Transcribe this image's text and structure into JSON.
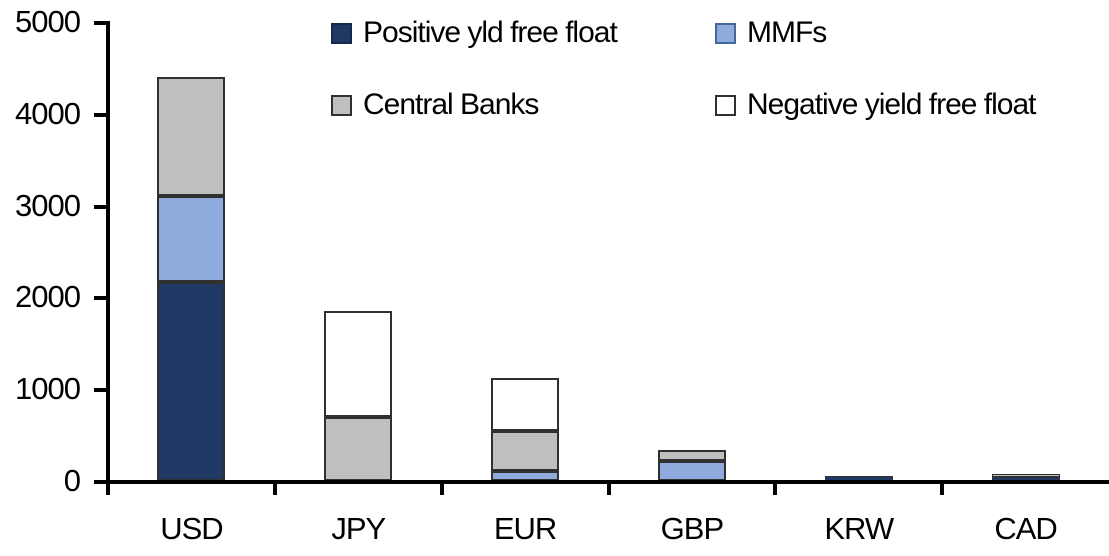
{
  "chart_data": {
    "type": "bar",
    "variant": "stacked-vertical",
    "title": "",
    "xlabel": "",
    "ylabel": "",
    "categories": [
      "USD",
      "JPY",
      "EUR",
      "GBP",
      "KRW",
      "CAD"
    ],
    "series": [
      {
        "name": "Positive yld free float",
        "color": "#1F3864",
        "border": "#17294A",
        "values": [
          2170,
          0,
          0,
          0,
          50,
          45
        ]
      },
      {
        "name": "MMFs",
        "color": "#8FAADC",
        "border": "#44679A",
        "values": [
          940,
          0,
          110,
          220,
          0,
          0
        ]
      },
      {
        "name": "Central Banks",
        "color": "#BFBFBF",
        "border": "#303030",
        "values": [
          1290,
          700,
          430,
          120,
          0,
          30
        ]
      },
      {
        "name": "Negative yield free float",
        "color": "#FFFFFF",
        "border": "#303030",
        "values": [
          0,
          1150,
          580,
          0,
          0,
          0
        ]
      }
    ],
    "totals": [
      4400,
      1850,
      1120,
      340,
      50,
      75
    ],
    "ylim": [
      0,
      5000
    ],
    "yticks": [
      0,
      1000,
      2000,
      3000,
      4000,
      5000
    ],
    "grid": false,
    "legend_position": "top",
    "axis_color": "#000000",
    "text_color": "#000000",
    "background_color": "#FFFFFF"
  }
}
